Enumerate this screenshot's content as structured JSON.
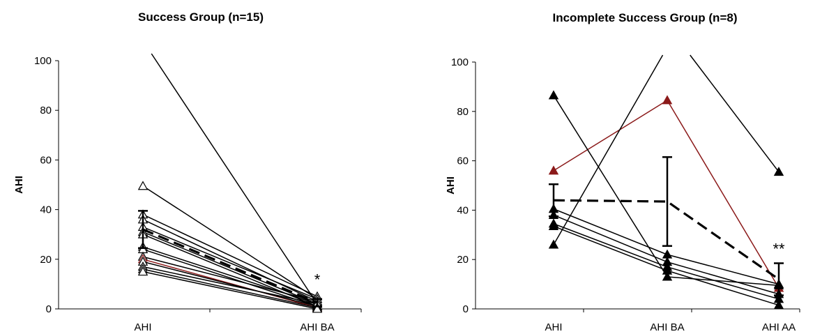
{
  "chart_data": [
    {
      "type": "line",
      "title": "Success Group (n=15)",
      "ylabel": "AHI",
      "xlabel": "",
      "categories": [
        "AHI",
        "AHI BA"
      ],
      "ylim": [
        0,
        100
      ],
      "yticks": [
        0,
        20,
        40,
        60,
        80,
        100
      ],
      "marker": "open-triangle",
      "series": [
        {
          "values": [
            108,
            2
          ],
          "color": "#000000"
        },
        {
          "values": [
            49.5,
            4
          ],
          "color": "#000000"
        },
        {
          "values": [
            38,
            5
          ],
          "color": "#000000"
        },
        {
          "values": [
            36,
            3
          ],
          "color": "#000000"
        },
        {
          "values": [
            33,
            4
          ],
          "color": "#000000"
        },
        {
          "values": [
            31,
            2
          ],
          "color": "#000000"
        },
        {
          "values": [
            30,
            1
          ],
          "color": "#000000"
        },
        {
          "values": [
            25,
            2
          ],
          "color": "#000000"
        },
        {
          "values": [
            24,
            1
          ],
          "color": "#000000"
        },
        {
          "values": [
            21,
            3
          ],
          "color": "#000000"
        },
        {
          "values": [
            20,
            0.5
          ],
          "color": "#8b1a1a"
        },
        {
          "values": [
            19,
            1
          ],
          "color": "#000000"
        },
        {
          "values": [
            17,
            2
          ],
          "color": "#000000"
        },
        {
          "values": [
            16,
            0.5
          ],
          "color": "#000000"
        },
        {
          "values": [
            15,
            0
          ],
          "color": "#000000"
        }
      ],
      "mean": {
        "values": [
          32,
          2.5
        ],
        "error": [
          7.5,
          1.5
        ]
      },
      "annotations": [
        {
          "text": "*",
          "category": "AHI BA",
          "y": 13
        }
      ]
    },
    {
      "type": "line",
      "title": "Incomplete Success Group (n=8)",
      "ylabel": "AHI",
      "xlabel": "",
      "categories": [
        "AHI",
        "AHI BA",
        "AHI AA"
      ],
      "ylim": [
        0,
        100
      ],
      "yticks": [
        0,
        20,
        40,
        60,
        80,
        100
      ],
      "marker": "filled-triangle",
      "series": [
        {
          "values": [
            56,
            84.5,
            8.5
          ],
          "color": "#8b1a1a"
        },
        {
          "values": [
            86.5,
            13,
            9.5
          ],
          "color": "#000000"
        },
        {
          "values": [
            26,
            106,
            null
          ],
          "color": "#000000"
        },
        {
          "values": [
            null,
            115,
            55.5
          ],
          "color": "#000000"
        },
        {
          "values": [
            40.5,
            22,
            10
          ],
          "color": "#000000"
        },
        {
          "values": [
            38,
            19,
            6
          ],
          "color": "#000000"
        },
        {
          "values": [
            34.5,
            17,
            4
          ],
          "color": "#000000"
        },
        {
          "values": [
            33.5,
            15.5,
            1.5
          ],
          "color": "#000000"
        }
      ],
      "mean": {
        "values": [
          44,
          43.5,
          12
        ],
        "error": [
          6.5,
          18,
          6.5
        ]
      },
      "annotations": [
        {
          "text": "**",
          "category": "AHI AA",
          "y": 25.5
        }
      ]
    }
  ]
}
